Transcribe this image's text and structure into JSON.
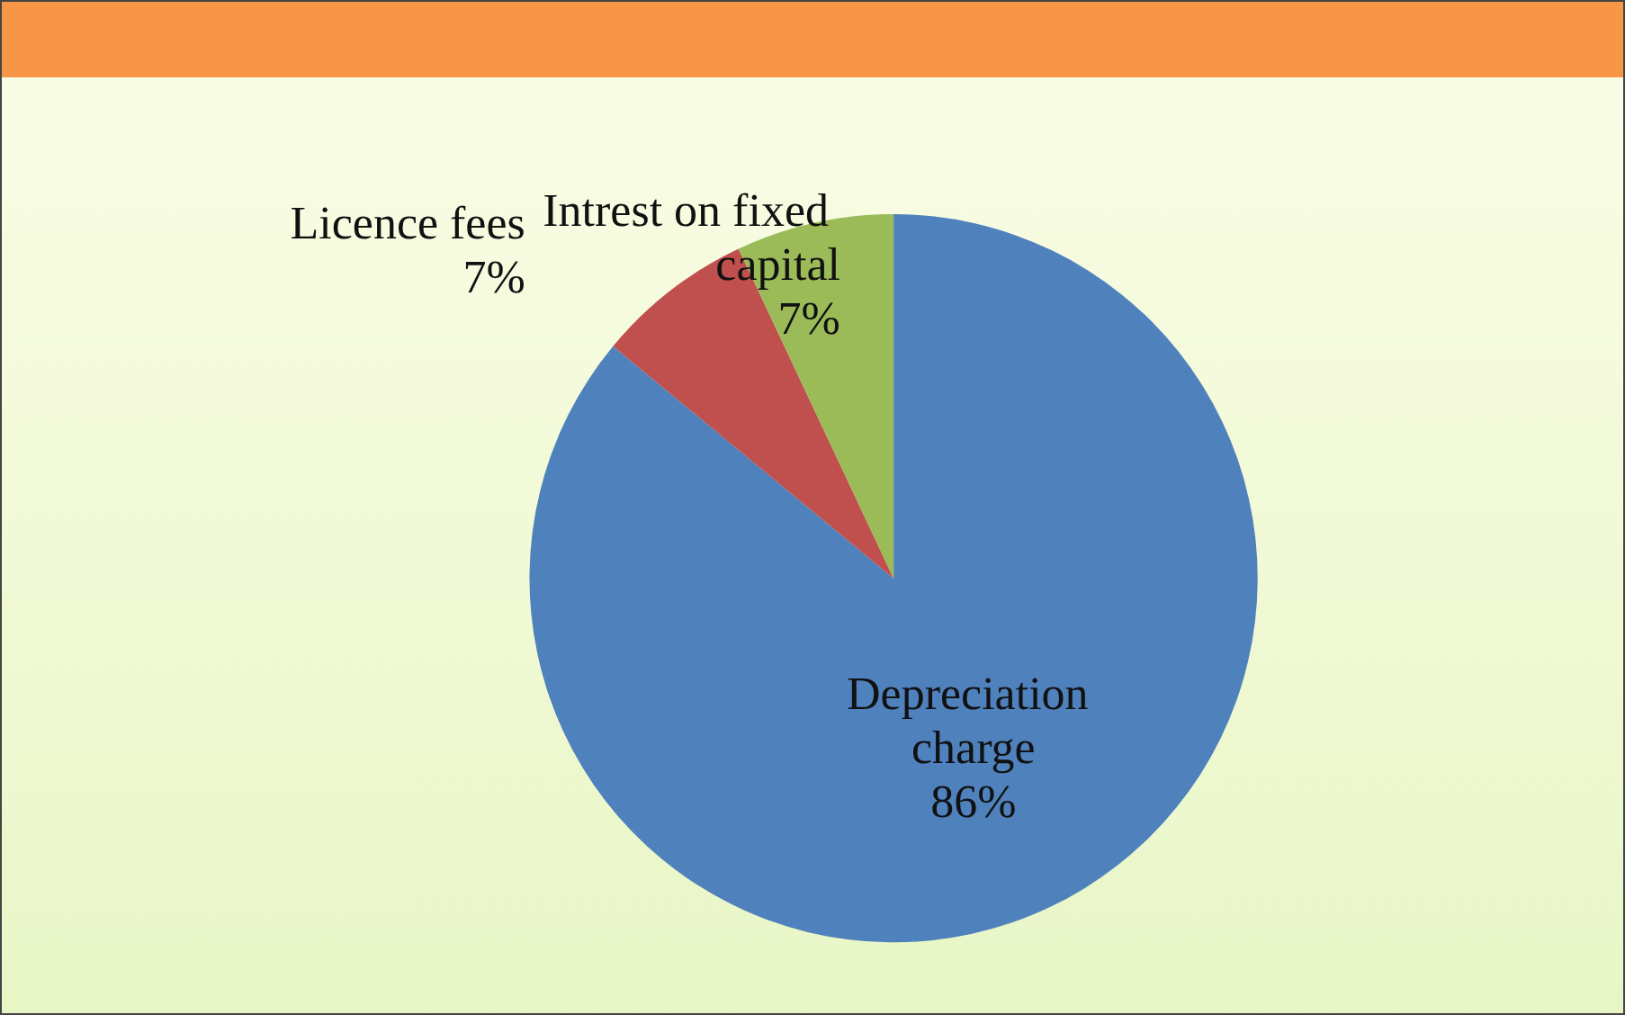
{
  "chart_data": {
    "type": "pie",
    "categories": [
      "Depreciation charge",
      "Licence fees",
      "Intrest on fixed capital"
    ],
    "values": [
      86,
      7,
      7
    ],
    "colors": [
      "#4f81bd",
      "#c0504d",
      "#9bbb59"
    ],
    "value_labels": [
      "86%",
      "7%",
      "7%"
    ]
  }
}
